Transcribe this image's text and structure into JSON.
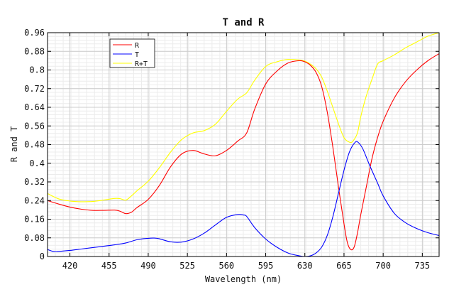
{
  "chart_data": {
    "type": "line",
    "title": "T and R",
    "xlabel": "Wavelength (nm)",
    "ylabel": "R and T",
    "xlim": [
      400,
      750
    ],
    "ylim": [
      0,
      0.96
    ],
    "x_ticks": [
      420,
      455,
      490,
      525,
      560,
      595,
      630,
      665,
      700,
      735
    ],
    "y_ticks": [
      0,
      0.08,
      0.16,
      0.24,
      0.32,
      0.4,
      0.48,
      0.56,
      0.64,
      0.72,
      0.8,
      0.88,
      0.96
    ],
    "y_tick_labels": [
      "0",
      "0.08",
      "0.16",
      "0.24",
      "0.32",
      "0.4",
      "0.48",
      "0.56",
      "0.64",
      "0.72",
      "0.8",
      "0.88",
      "0.96"
    ],
    "grid": true,
    "legend": "top-left",
    "series": [
      {
        "name": "R",
        "color": "#ff0000",
        "x": [
          400,
          410,
          420,
          430,
          440,
          450,
          460,
          465,
          470,
          475,
          480,
          490,
          500,
          510,
          520,
          530,
          540,
          550,
          560,
          570,
          578,
          585,
          595,
          605,
          615,
          625,
          630,
          635,
          640,
          645,
          650,
          655,
          660,
          665,
          668,
          671,
          674,
          677,
          680,
          685,
          690,
          695,
          700,
          710,
          720,
          730,
          740,
          750
        ],
        "y": [
          0.24,
          0.225,
          0.212,
          0.203,
          0.198,
          0.198,
          0.199,
          0.194,
          0.184,
          0.19,
          0.21,
          0.245,
          0.305,
          0.385,
          0.44,
          0.455,
          0.44,
          0.432,
          0.455,
          0.495,
          0.53,
          0.63,
          0.74,
          0.795,
          0.83,
          0.84,
          0.835,
          0.82,
          0.79,
          0.73,
          0.62,
          0.47,
          0.3,
          0.14,
          0.06,
          0.03,
          0.04,
          0.1,
          0.18,
          0.3,
          0.42,
          0.51,
          0.58,
          0.68,
          0.75,
          0.8,
          0.84,
          0.87
        ]
      },
      {
        "name": "T",
        "color": "#0000ff",
        "x": [
          400,
          405,
          410,
          420,
          430,
          440,
          450,
          460,
          470,
          480,
          490,
          495,
          500,
          510,
          520,
          530,
          540,
          550,
          560,
          570,
          575,
          578,
          585,
          595,
          605,
          615,
          625,
          630,
          635,
          640,
          645,
          650,
          655,
          660,
          665,
          670,
          675,
          678,
          682,
          688,
          695,
          700,
          710,
          720,
          730,
          740,
          750
        ],
        "y": [
          0.03,
          0.022,
          0.022,
          0.026,
          0.032,
          0.038,
          0.044,
          0.05,
          0.058,
          0.072,
          0.078,
          0.079,
          0.076,
          0.063,
          0.062,
          0.075,
          0.1,
          0.135,
          0.168,
          0.18,
          0.178,
          0.172,
          0.125,
          0.075,
          0.04,
          0.015,
          0.003,
          0.0,
          0.003,
          0.015,
          0.04,
          0.09,
          0.17,
          0.27,
          0.37,
          0.45,
          0.49,
          0.488,
          0.46,
          0.39,
          0.315,
          0.26,
          0.185,
          0.145,
          0.12,
          0.102,
          0.09
        ]
      },
      {
        "name": "R+T",
        "color": "#ffff00",
        "x": [
          400,
          410,
          420,
          430,
          440,
          450,
          460,
          465,
          470,
          475,
          480,
          490,
          500,
          510,
          520,
          530,
          540,
          550,
          560,
          570,
          578,
          585,
          595,
          605,
          615,
          625,
          630,
          635,
          640,
          645,
          650,
          655,
          660,
          665,
          670,
          673,
          677,
          680,
          685,
          690,
          695,
          700,
          710,
          720,
          730,
          740,
          750
        ],
        "y": [
          0.27,
          0.247,
          0.238,
          0.235,
          0.236,
          0.242,
          0.249,
          0.248,
          0.242,
          0.26,
          0.282,
          0.323,
          0.381,
          0.448,
          0.502,
          0.53,
          0.54,
          0.567,
          0.623,
          0.675,
          0.702,
          0.755,
          0.815,
          0.835,
          0.845,
          0.843,
          0.838,
          0.825,
          0.805,
          0.77,
          0.71,
          0.64,
          0.57,
          0.51,
          0.49,
          0.495,
          0.53,
          0.6,
          0.69,
          0.76,
          0.825,
          0.84,
          0.865,
          0.895,
          0.92,
          0.945,
          0.96
        ]
      }
    ]
  }
}
